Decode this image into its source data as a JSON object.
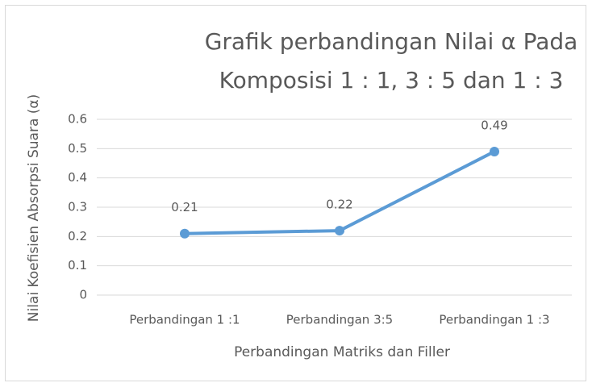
{
  "chart_data": {
    "type": "line",
    "title": [
      "Grafik perbandingan Nilai α Pada",
      "Komposisi 1 : 1, 3 : 5 dan 1 : 3"
    ],
    "x_label": "Perbandingan Matriks dan Filler",
    "y_label": "Nilai Koefisien Absorpsi Suara (α)",
    "categories": [
      "Perbandingan 1 :1",
      "Perbandingan 3:5",
      "Perbandingan 1 :3"
    ],
    "values": [
      0.21,
      0.22,
      0.49
    ],
    "color": "#5b9bd5",
    "ylim": [
      0,
      0.6
    ],
    "yticks": [
      0,
      0.1,
      0.2,
      0.3,
      0.4,
      0.5,
      0.6
    ],
    "grid": true
  }
}
